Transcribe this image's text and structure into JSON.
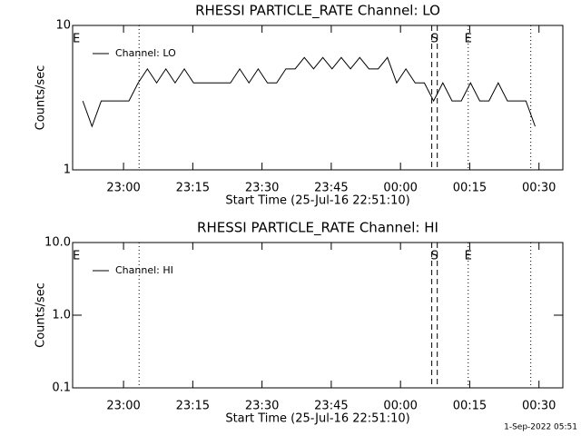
{
  "chart_data": [
    {
      "type": "line",
      "title": "RHESSI PARTICLE_RATE Channel: LO",
      "x_label": "Start Time (25-Jul-16 22:51:10)",
      "y_label": "Counts/sec",
      "log_y": true,
      "xlim": [
        -2.2,
        104
      ],
      "ylim": [
        1,
        10
      ],
      "xticks": [
        {
          "value": 8.83,
          "label": "23:00"
        },
        {
          "value": 23.83,
          "label": "23:15"
        },
        {
          "value": 38.83,
          "label": "23:30"
        },
        {
          "value": 53.83,
          "label": "23:45"
        },
        {
          "value": 68.83,
          "label": "00:00"
        },
        {
          "value": 83.83,
          "label": "00:15"
        },
        {
          "value": 98.83,
          "label": "00:30"
        }
      ],
      "yticks": [
        1,
        10
      ],
      "x": [
        0,
        2,
        4,
        6,
        8,
        10,
        12,
        14,
        16,
        18,
        20,
        22,
        24,
        26,
        28,
        30,
        32,
        34,
        36,
        38,
        40,
        42,
        44,
        46,
        48,
        50,
        52,
        54,
        56,
        58,
        60,
        62,
        64,
        66,
        68,
        70,
        72,
        74,
        76,
        78,
        80,
        82,
        84,
        86,
        88,
        90,
        92,
        94,
        96,
        98
      ],
      "series": [
        {
          "name": "Channel: LO",
          "color": "#000000",
          "values": [
            3,
            2,
            3,
            3,
            3,
            3,
            4,
            5,
            4,
            5,
            4,
            5,
            4,
            4,
            4,
            4,
            4,
            5,
            4,
            5,
            4,
            4,
            5,
            5,
            6,
            5,
            6,
            5,
            6,
            5,
            6,
            5,
            5,
            6,
            4,
            5,
            4,
            4,
            3,
            4,
            3,
            3,
            4,
            3,
            3,
            4,
            3,
            3,
            3,
            2
          ]
        }
      ],
      "markers": [
        {
          "x": -1.4,
          "label": "E"
        },
        {
          "x": 76.2,
          "label": "S"
        },
        {
          "x": 83.5,
          "label": "E"
        }
      ],
      "vlines": [
        {
          "x": 12.2,
          "style": "dotted"
        },
        {
          "x": 75.6,
          "style": "dashed"
        },
        {
          "x": 76.8,
          "style": "dashed"
        },
        {
          "x": 83.5,
          "style": "dotted"
        },
        {
          "x": 97.05,
          "style": "dotted"
        }
      ]
    },
    {
      "type": "line",
      "title": "RHESSI PARTICLE_RATE Channel: HI",
      "x_label": "Start Time (25-Jul-16 22:51:10)",
      "y_label": "Counts/sec",
      "log_y": true,
      "xlim": [
        -2.2,
        104
      ],
      "ylim": [
        0.1,
        10
      ],
      "xticks": [
        {
          "value": 8.83,
          "label": "23:00"
        },
        {
          "value": 23.83,
          "label": "23:15"
        },
        {
          "value": 38.83,
          "label": "23:30"
        },
        {
          "value": 53.83,
          "label": "23:45"
        },
        {
          "value": 68.83,
          "label": "00:00"
        },
        {
          "value": 83.83,
          "label": "00:15"
        },
        {
          "value": 98.83,
          "label": "00:30"
        }
      ],
      "yticks": [
        0.1,
        {
          "value": 1,
          "label": "1.0"
        },
        {
          "value": 10,
          "label": "10.0"
        }
      ],
      "x": [],
      "series": [
        {
          "name": "Channel: HI",
          "color": "#000000",
          "values": []
        }
      ],
      "markers": [
        {
          "x": -1.4,
          "label": "E"
        },
        {
          "x": 76.2,
          "label": "S"
        },
        {
          "x": 83.5,
          "label": "E"
        }
      ],
      "vlines": [
        {
          "x": 12.2,
          "style": "dotted"
        },
        {
          "x": 75.6,
          "style": "dashed"
        },
        {
          "x": 76.8,
          "style": "dashed"
        },
        {
          "x": 83.5,
          "style": "dotted"
        },
        {
          "x": 97.05,
          "style": "dotted"
        }
      ]
    }
  ],
  "footer": "1-Sep-2022 05:51"
}
